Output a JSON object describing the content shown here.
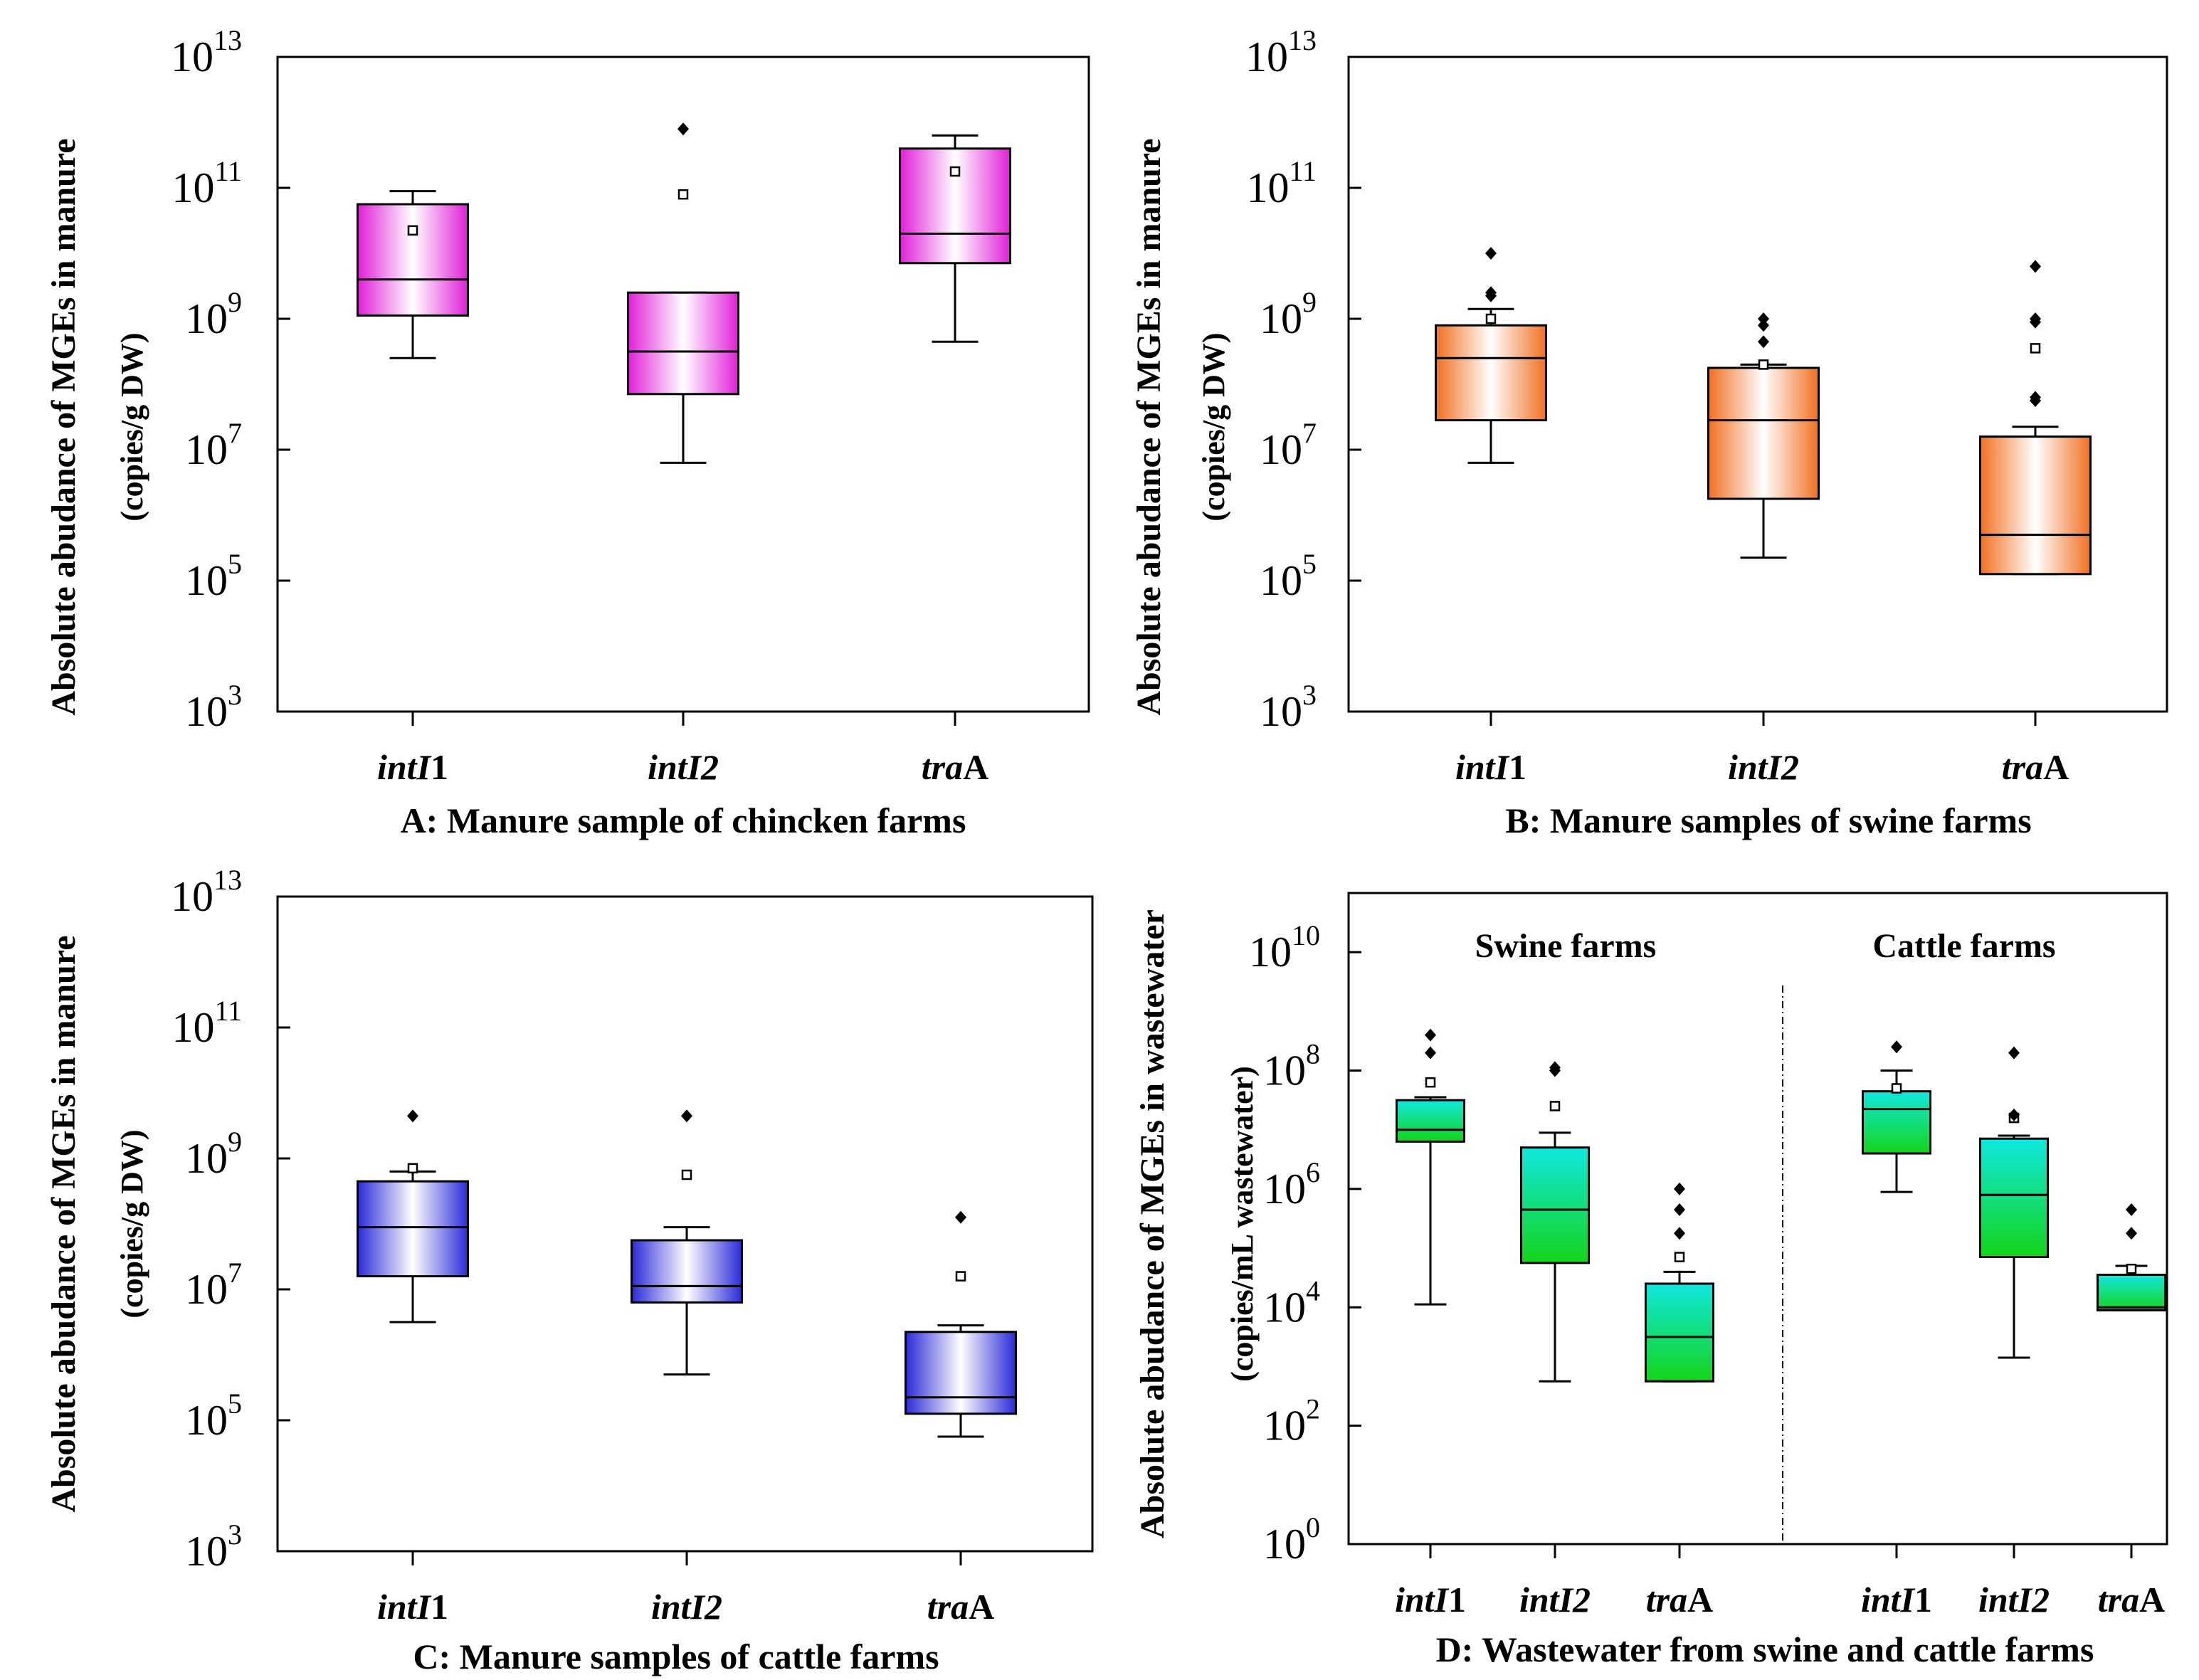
{
  "chart_data": [
    {
      "panel": "A",
      "type": "box",
      "caption": "A: Manure sample of chincken farms",
      "ylabel": "Absolute abudance of MGEs in manure",
      "ylabel2": "(copies/g DW)",
      "yscale": "log",
      "ylim_exp": [
        3,
        13
      ],
      "yticks_exp": [
        3,
        5,
        7,
        9,
        11,
        13
      ],
      "colors": {
        "fill": "#e020d8",
        "light": "#ffffff",
        "stroke": "#000000"
      },
      "groups": [],
      "boxes": [
        {
          "italic": "intI",
          "suffix": "1",
          "whisker_low_exp": 8.4,
          "q1_exp": 9.05,
          "median_exp": 9.6,
          "q3_exp": 10.75,
          "whisker_high_exp": 10.95,
          "mean_exp": 10.35,
          "outliers_exp": []
        },
        {
          "italic": "intI2",
          "suffix": "",
          "whisker_low_exp": 6.8,
          "q1_exp": 7.85,
          "median_exp": 8.5,
          "q3_exp": 9.4,
          "whisker_high_exp": 9.4,
          "mean_exp": 10.9,
          "outliers_exp": [
            11.9
          ]
        },
        {
          "italic": "tra",
          "suffix": "A",
          "whisker_low_exp": 8.65,
          "q1_exp": 9.85,
          "median_exp": 10.3,
          "q3_exp": 11.6,
          "whisker_high_exp": 11.8,
          "mean_exp": 11.25,
          "outliers_exp": []
        }
      ]
    },
    {
      "panel": "B",
      "type": "box",
      "caption": "B: Manure samples of swine farms",
      "ylabel": "Absolute abudance of MGEs in manure",
      "ylabel2": "(copies/g DW)",
      "yscale": "log",
      "ylim_exp": [
        3,
        13
      ],
      "yticks_exp": [
        3,
        5,
        7,
        9,
        11,
        13
      ],
      "colors": {
        "fill": "#f07020",
        "light": "#ffffff",
        "stroke": "#000000"
      },
      "groups": [],
      "boxes": [
        {
          "italic": "intI",
          "suffix": "1",
          "whisker_low_exp": 6.8,
          "q1_exp": 7.45,
          "median_exp": 8.4,
          "q3_exp": 8.9,
          "whisker_high_exp": 9.15,
          "mean_exp": 9.0,
          "outliers_exp": [
            10.0,
            9.4,
            9.35
          ]
        },
        {
          "italic": "intI2",
          "suffix": "",
          "whisker_low_exp": 5.35,
          "q1_exp": 6.25,
          "median_exp": 7.45,
          "q3_exp": 8.25,
          "whisker_high_exp": 8.3,
          "mean_exp": 8.3,
          "outliers_exp": [
            9.0,
            8.9,
            8.65
          ]
        },
        {
          "italic": "tra",
          "suffix": "A",
          "whisker_low_exp": 5.1,
          "q1_exp": 5.1,
          "median_exp": 5.7,
          "q3_exp": 7.2,
          "whisker_high_exp": 7.35,
          "mean_exp": 8.55,
          "outliers_exp": [
            9.8,
            9.0,
            8.95,
            7.8,
            7.75
          ]
        }
      ]
    },
    {
      "panel": "C",
      "type": "box",
      "caption": "C: Manure samples of cattle farms",
      "ylabel": "Absolute abudance of MGEs in manure",
      "ylabel2": "(copies/g DW)",
      "yscale": "log",
      "ylim_exp": [
        3,
        13
      ],
      "yticks_exp": [
        3,
        5,
        7,
        9,
        11,
        13
      ],
      "colors": {
        "fill": "#2a2ad8",
        "light": "#ffffff",
        "stroke": "#000000"
      },
      "groups": [],
      "boxes": [
        {
          "italic": "intI",
          "suffix": "1",
          "whisker_low_exp": 6.5,
          "q1_exp": 7.2,
          "median_exp": 7.95,
          "q3_exp": 8.65,
          "whisker_high_exp": 8.8,
          "mean_exp": 8.85,
          "outliers_exp": [
            9.65
          ]
        },
        {
          "italic": "intI2",
          "suffix": "",
          "whisker_low_exp": 5.7,
          "q1_exp": 6.8,
          "median_exp": 7.05,
          "q3_exp": 7.75,
          "whisker_high_exp": 7.95,
          "mean_exp": 8.75,
          "outliers_exp": [
            9.65
          ]
        },
        {
          "italic": "tra",
          "suffix": "A",
          "whisker_low_exp": 4.75,
          "q1_exp": 5.1,
          "median_exp": 5.35,
          "q3_exp": 6.35,
          "whisker_high_exp": 6.45,
          "mean_exp": 7.2,
          "outliers_exp": [
            8.1
          ]
        }
      ]
    },
    {
      "panel": "D",
      "type": "box",
      "caption": "D: Wastewater from swine and cattle farms",
      "ylabel": "Absolute abudance of MGEs in wastewater",
      "ylabel2": "(copies/mL wastewater)",
      "yscale": "log",
      "ylim_exp": [
        0,
        11
      ],
      "yticks_exp": [
        0,
        2,
        4,
        6,
        8,
        10
      ],
      "colors": {
        "fill": "#14d418",
        "light": "#10e8e0",
        "stroke": "#000000"
      },
      "groups": [
        "Swine farms",
        "Cattle farms"
      ],
      "boxes": [
        {
          "group": 0,
          "italic": "intI",
          "suffix": "1",
          "whisker_low_exp": 4.05,
          "q1_exp": 6.8,
          "median_exp": 7.0,
          "q3_exp": 7.5,
          "whisker_high_exp": 7.55,
          "mean_exp": 7.8,
          "outliers_exp": [
            8.6,
            8.3
          ]
        },
        {
          "group": 0,
          "italic": "intI2",
          "suffix": "",
          "whisker_low_exp": 2.75,
          "q1_exp": 4.75,
          "median_exp": 5.65,
          "q3_exp": 6.7,
          "whisker_high_exp": 6.95,
          "mean_exp": 7.4,
          "outliers_exp": [
            8.05,
            8.0
          ]
        },
        {
          "group": 0,
          "italic": "tra",
          "suffix": "A",
          "whisker_low_exp": 2.75,
          "q1_exp": 2.75,
          "median_exp": 3.5,
          "q3_exp": 4.4,
          "whisker_high_exp": 4.6,
          "mean_exp": 4.85,
          "outliers_exp": [
            6.0,
            5.65,
            5.25
          ]
        },
        {
          "group": 1,
          "italic": "intI",
          "suffix": "1",
          "whisker_low_exp": 5.95,
          "q1_exp": 6.6,
          "median_exp": 7.35,
          "q3_exp": 7.65,
          "whisker_high_exp": 8.0,
          "mean_exp": 7.7,
          "outliers_exp": [
            8.4
          ]
        },
        {
          "group": 1,
          "italic": "intI2",
          "suffix": "",
          "whisker_low_exp": 3.15,
          "q1_exp": 4.85,
          "median_exp": 5.9,
          "q3_exp": 6.85,
          "whisker_high_exp": 6.9,
          "mean_exp": 7.2,
          "outliers_exp": [
            8.3,
            7.25
          ]
        },
        {
          "group": 1,
          "italic": "tra",
          "suffix": "A",
          "whisker_low_exp": 3.95,
          "q1_exp": 3.95,
          "median_exp": 4.0,
          "q3_exp": 4.55,
          "whisker_high_exp": 4.7,
          "mean_exp": 4.65,
          "outliers_exp": [
            5.65,
            5.25
          ]
        }
      ]
    }
  ]
}
